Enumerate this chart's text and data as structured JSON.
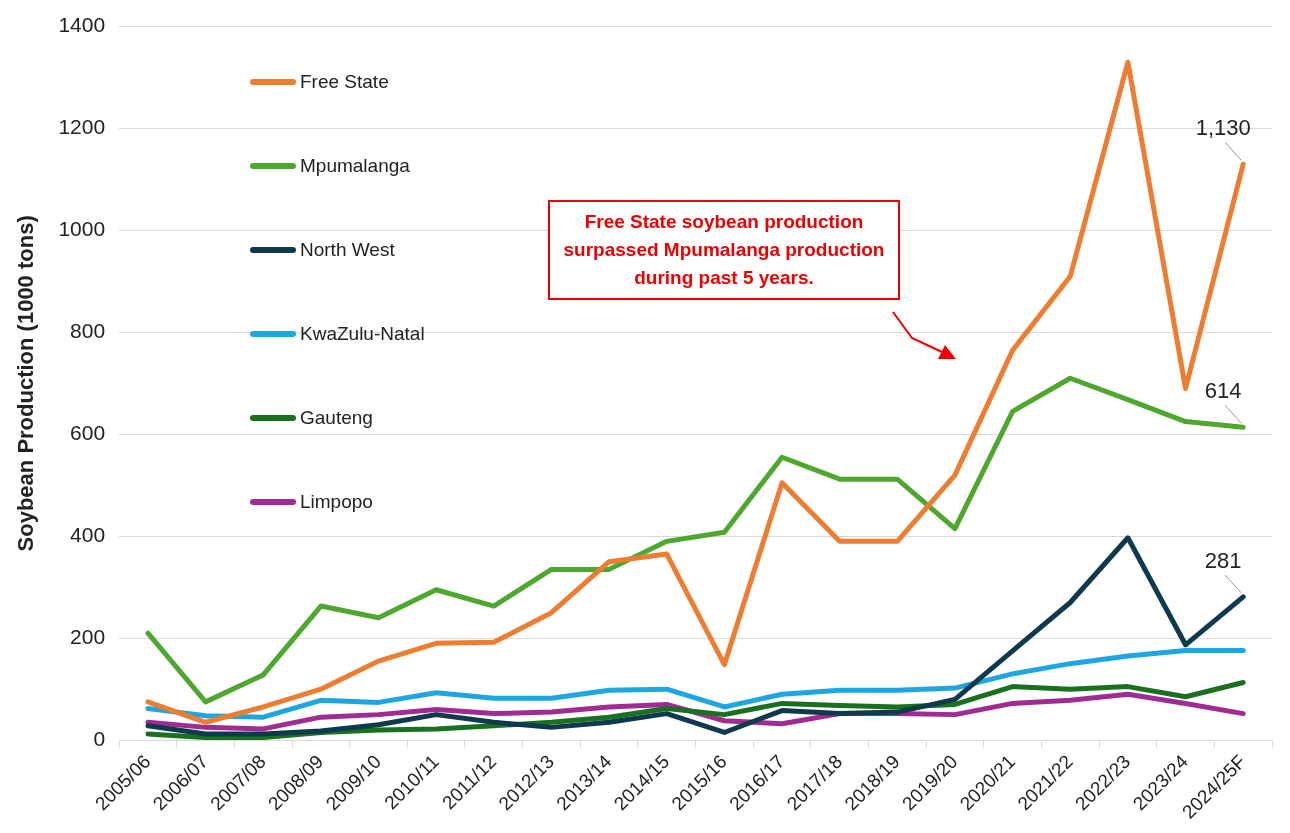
{
  "chart_data": {
    "type": "line",
    "ylabel": "Soybean Production (1000 tons)",
    "categories": [
      "2005/06",
      "2006/07",
      "2007/08",
      "2008/09",
      "2009/10",
      "2010/11",
      "2011/12",
      "2012/13",
      "2013/14",
      "2014/15",
      "2015/16",
      "2016/17",
      "2017/18",
      "2018/19",
      "2019/20",
      "2020/21",
      "2021/22",
      "2022/23",
      "2023/24",
      "2024/25F"
    ],
    "series": [
      {
        "name": "Free State",
        "color": "#ed7d31",
        "values": [
          75,
          35,
          65,
          100,
          155,
          190,
          192,
          250,
          350,
          365,
          148,
          505,
          390,
          390,
          520,
          765,
          910,
          1330,
          690,
          1130
        ],
        "value_labels": [
          null,
          null,
          null,
          null,
          null,
          null,
          null,
          null,
          null,
          null,
          null,
          null,
          null,
          null,
          null,
          null,
          null,
          null,
          null,
          "1,130"
        ]
      },
      {
        "name": "Mpumalanga",
        "color": "#4ea72e",
        "values": [
          210,
          75,
          128,
          263,
          240,
          295,
          263,
          335,
          335,
          390,
          408,
          555,
          512,
          512,
          415,
          645,
          710,
          668,
          625,
          614
        ],
        "value_labels": [
          null,
          null,
          null,
          null,
          null,
          null,
          null,
          null,
          null,
          null,
          null,
          null,
          null,
          null,
          null,
          null,
          null,
          null,
          null,
          "614"
        ]
      },
      {
        "name": "North West",
        "color": "#0f3a4e",
        "values": [
          28,
          12,
          12,
          18,
          30,
          50,
          35,
          25,
          35,
          52,
          15,
          58,
          52,
          55,
          80,
          175,
          270,
          397,
          187,
          281
        ],
        "value_labels": [
          null,
          null,
          null,
          null,
          null,
          null,
          null,
          null,
          null,
          null,
          null,
          null,
          null,
          null,
          null,
          null,
          null,
          null,
          null,
          "281"
        ]
      },
      {
        "name": "KwaZulu-Natal",
        "color": "#1ea6e0",
        "values": [
          62,
          48,
          45,
          78,
          74,
          93,
          82,
          82,
          98,
          100,
          65,
          90,
          98,
          98,
          102,
          130,
          150,
          165,
          176,
          176
        ]
      },
      {
        "name": "Gauteng",
        "color": "#19701f",
        "values": [
          12,
          5,
          5,
          15,
          20,
          22,
          28,
          35,
          45,
          62,
          50,
          72,
          68,
          65,
          70,
          105,
          100,
          105,
          85,
          113
        ]
      },
      {
        "name": "Limpopo",
        "color": "#a02b93",
        "values": [
          35,
          25,
          22,
          45,
          50,
          60,
          52,
          55,
          65,
          70,
          38,
          32,
          52,
          52,
          50,
          72,
          78,
          90,
          72,
          52
        ]
      }
    ],
    "ylim": [
      0,
      1400
    ],
    "yticks": [
      0,
      200,
      400,
      600,
      800,
      1000,
      1200,
      1400
    ],
    "grid": "y",
    "legend": "top left",
    "marker": "none",
    "line_style": "solid",
    "annotations": [
      "Free State soybean production surpassed Mpumalanga production during past 5 years."
    ]
  }
}
